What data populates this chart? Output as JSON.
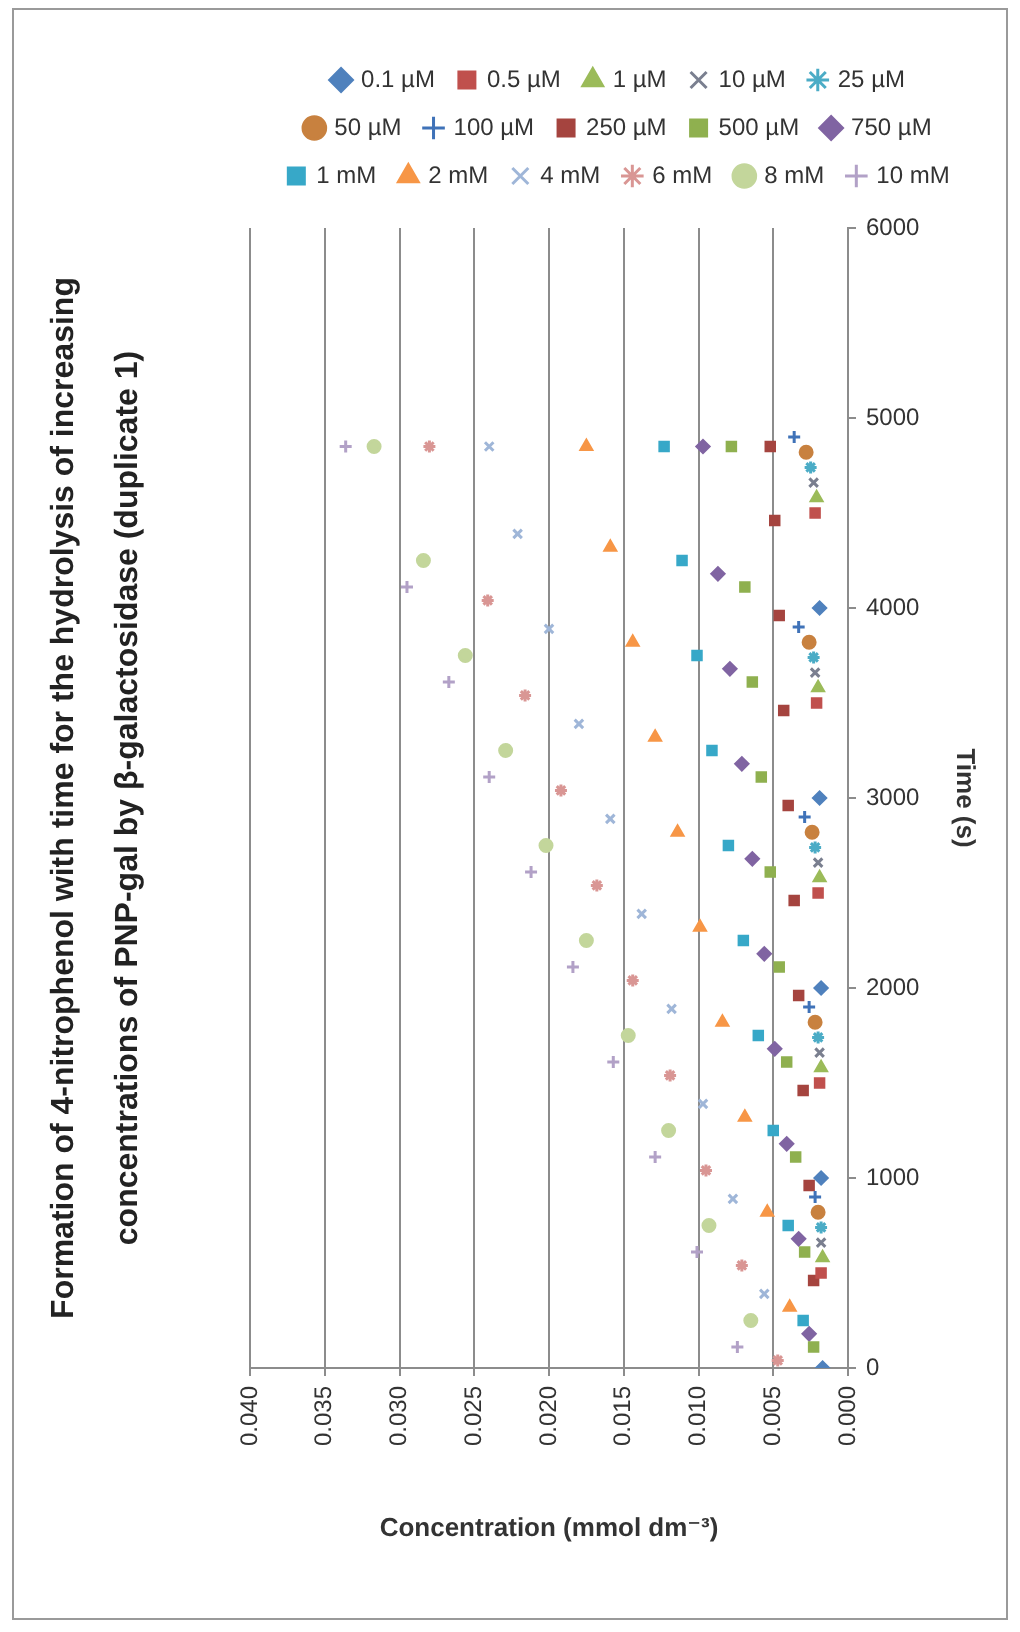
{
  "chart_data": {
    "type": "scatter",
    "title": "Formation of 4-nitrophenol with time for the hydrolysis of increasing concentrations of PNP-gal by β-galactosidase (duplicate 1)",
    "xlabel": "Concentration (mmol dm⁻³)",
    "ylabel": "Time (s)",
    "xlim": [
      0.04,
      0
    ],
    "xticks": [
      {
        "value": 0.04,
        "label": "0.040"
      },
      {
        "value": 0.035,
        "label": "0.035"
      },
      {
        "value": 0.03,
        "label": "0.030"
      },
      {
        "value": 0.025,
        "label": "0.025"
      },
      {
        "value": 0.02,
        "label": "0.020"
      },
      {
        "value": 0.015,
        "label": "0.015"
      },
      {
        "value": 0.01,
        "label": "0.010"
      },
      {
        "value": 0.005,
        "label": "0.005"
      },
      {
        "value": 0,
        "label": "0.000"
      }
    ],
    "ylim": [
      0,
      6000
    ],
    "yticks": [
      0,
      1000,
      2000,
      3000,
      4000,
      5000,
      6000
    ],
    "grid": "x",
    "legend": "top",
    "series": [
      {
        "name": "0.1 µM",
        "color": "#4f81bd",
        "marker": "diamond",
        "x": [
          0.0017,
          0.0018,
          0.0018,
          0.0019,
          0.0019
        ],
        "values": [
          0,
          1000,
          2000,
          3000,
          4000
        ]
      },
      {
        "name": "0.5 µM",
        "color": "#c0504d",
        "marker": "square",
        "x": [
          0.0018,
          0.0019,
          0.002,
          0.0021,
          0.0022
        ],
        "values": [
          500,
          1500,
          2500,
          3500,
          4500
        ]
      },
      {
        "name": "1 µM",
        "color": "#9bbb59",
        "marker": "triangle",
        "x": [
          0.0017,
          0.0018,
          0.0019,
          0.002,
          0.0021
        ],
        "values": [
          580,
          1580,
          2580,
          3580,
          4580
        ]
      },
      {
        "name": "10 µM",
        "color": "#7a7f8f",
        "marker": "x",
        "x": [
          0.0018,
          0.0019,
          0.002,
          0.0022,
          0.0023
        ],
        "values": [
          660,
          1660,
          2660,
          3660,
          4660
        ]
      },
      {
        "name": "25 µM",
        "color": "#4bacc6",
        "marker": "cross",
        "x": [
          0.0018,
          0.002,
          0.0022,
          0.0023,
          0.0025
        ],
        "values": [
          740,
          1740,
          2740,
          3740,
          4740
        ]
      },
      {
        "name": "50 µM",
        "color": "#c8813f",
        "marker": "circle",
        "x": [
          0.002,
          0.0022,
          0.0024,
          0.0026,
          0.0028
        ],
        "values": [
          820,
          1820,
          2820,
          3820,
          4820
        ]
      },
      {
        "name": "100 µM",
        "color": "#3f72b8",
        "marker": "plus",
        "x": [
          0.0022,
          0.0026,
          0.0029,
          0.0033,
          0.0036
        ],
        "values": [
          900,
          1900,
          2900,
          3900,
          4900
        ]
      },
      {
        "name": "250 µM",
        "color": "#a5443f",
        "marker": "square",
        "x": [
          0.0023,
          0.0026,
          0.003,
          0.0033,
          0.0036,
          0.004,
          0.0043,
          0.0046,
          0.0049,
          0.0052
        ],
        "values": [
          460,
          960,
          1460,
          1960,
          2460,
          2960,
          3460,
          3960,
          4460,
          4850
        ]
      },
      {
        "name": "500 µM",
        "color": "#8fb04f",
        "marker": "square",
        "x": [
          0.0023,
          0.0029,
          0.0035,
          0.0041,
          0.0046,
          0.0052,
          0.0058,
          0.0064,
          0.0069,
          0.0078
        ],
        "values": [
          110,
          610,
          1110,
          1610,
          2110,
          2610,
          3110,
          3610,
          4110,
          4850
        ]
      },
      {
        "name": "750 µM",
        "color": "#8064a2",
        "marker": "diamond",
        "x": [
          0.0026,
          0.0033,
          0.0041,
          0.0049,
          0.0056,
          0.0064,
          0.0071,
          0.0079,
          0.0087,
          0.0097
        ],
        "values": [
          180,
          680,
          1180,
          1680,
          2180,
          2680,
          3180,
          3680,
          4180,
          4850
        ]
      },
      {
        "name": "1 mM",
        "color": "#37a8c8",
        "marker": "square",
        "x": [
          0.003,
          0.004,
          0.005,
          0.006,
          0.007,
          0.008,
          0.0091,
          0.0101,
          0.0111,
          0.0123
        ],
        "values": [
          250,
          750,
          1250,
          1750,
          2250,
          2750,
          3250,
          3750,
          4250,
          4850
        ]
      },
      {
        "name": "2 mM",
        "color": "#f79646",
        "marker": "triangle",
        "x": [
          0.0039,
          0.0054,
          0.0069,
          0.0084,
          0.0099,
          0.0114,
          0.0129,
          0.0144,
          0.0159,
          0.0175
        ],
        "values": [
          320,
          820,
          1320,
          1820,
          2320,
          2820,
          3320,
          3820,
          4320,
          4850
        ]
      },
      {
        "name": "4 mM",
        "color": "#9fb6d8",
        "marker": "x",
        "x": [
          0.0056,
          0.0077,
          0.0097,
          0.0118,
          0.0138,
          0.0159,
          0.018,
          0.02,
          0.0221,
          0.024
        ],
        "values": [
          390,
          890,
          1390,
          1890,
          2390,
          2890,
          3390,
          3890,
          4390,
          4850
        ]
      },
      {
        "name": "6 mM",
        "color": "#d99694",
        "marker": "cross",
        "x": [
          0.0047,
          0.0071,
          0.0095,
          0.0119,
          0.0144,
          0.0168,
          0.0192,
          0.0216,
          0.0241,
          0.028
        ],
        "values": [
          40,
          540,
          1040,
          1540,
          2040,
          2540,
          3040,
          3540,
          4040,
          4850
        ]
      },
      {
        "name": "8 mM",
        "color": "#c3d69b",
        "marker": "circle",
        "x": [
          0.0065,
          0.0093,
          0.012,
          0.0147,
          0.0175,
          0.0202,
          0.0229,
          0.0256,
          0.0284,
          0.0317
        ],
        "values": [
          250,
          750,
          1250,
          1750,
          2250,
          2750,
          3250,
          3750,
          4250,
          4850
        ]
      },
      {
        "name": "10 mM",
        "color": "#b2a1c7",
        "marker": "plus",
        "x": [
          0.0074,
          0.0101,
          0.0129,
          0.0157,
          0.0184,
          0.0212,
          0.024,
          0.0267,
          0.0295,
          0.0336
        ],
        "values": [
          110,
          610,
          1110,
          1610,
          2110,
          2610,
          3110,
          3610,
          4110,
          4850
        ]
      }
    ]
  }
}
